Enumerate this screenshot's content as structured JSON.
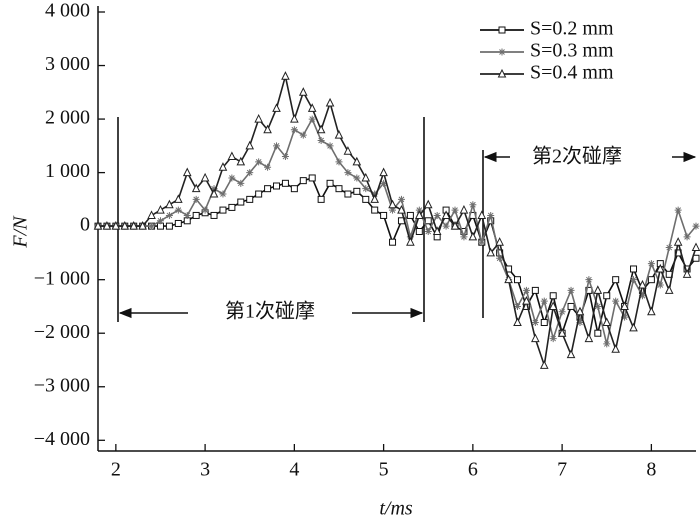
{
  "chart_data": {
    "type": "line",
    "x_label": "t/ms",
    "y_label": "F/N",
    "annotations": [
      "第1次碰摩",
      "第2次碰摩"
    ],
    "x": [
      1.8,
      1.9,
      2,
      2.1,
      2.2,
      2.3,
      2.4,
      2.5,
      2.6,
      2.7,
      2.8,
      2.9,
      3,
      3.1,
      3.2,
      3.3,
      3.4,
      3.5,
      3.6,
      3.7,
      3.8,
      3.9,
      4,
      4.1,
      4.2,
      4.3,
      4.4,
      4.5,
      4.6,
      4.7,
      4.8,
      4.9,
      5,
      5.1,
      5.2,
      5.3,
      5.4,
      5.5,
      5.6,
      5.7,
      5.8,
      5.9,
      6,
      6.1,
      6.2,
      6.3,
      6.4,
      6.5,
      6.6,
      6.7,
      6.8,
      6.9,
      7,
      7.1,
      7.2,
      7.3,
      7.4,
      7.5,
      7.6,
      7.7,
      7.8,
      7.9,
      8,
      8.1,
      8.2,
      8.3,
      8.4,
      8.5
    ],
    "series": [
      {
        "name": "S=0.2 mm",
        "color": "#111111",
        "marker": "square",
        "values": [
          0,
          0,
          0,
          0,
          0,
          0,
          0,
          0,
          0,
          50,
          100,
          200,
          250,
          200,
          300,
          350,
          450,
          500,
          600,
          700,
          750,
          800,
          700,
          850,
          900,
          500,
          800,
          700,
          600,
          650,
          500,
          300,
          200,
          -300,
          100,
          200,
          -100,
          100,
          -200,
          300,
          0,
          -100,
          200,
          -300,
          100,
          -500,
          -800,
          -1000,
          -1500,
          -1200,
          -1800,
          -1300,
          -2000,
          -1500,
          -1700,
          -1200,
          -2000,
          -1300,
          -1000,
          -1500,
          -800,
          -1200,
          -1000,
          -700,
          -900,
          -500,
          -800,
          -600
        ]
      },
      {
        "name": "S=0.3 mm",
        "color": "#6e6e6e",
        "marker": "asterisk",
        "values": [
          0,
          0,
          0,
          0,
          0,
          0,
          0,
          100,
          200,
          300,
          200,
          500,
          300,
          700,
          600,
          900,
          800,
          1000,
          1200,
          1100,
          1500,
          1300,
          1800,
          1700,
          2000,
          1600,
          1500,
          1200,
          1000,
          900,
          700,
          600,
          800,
          300,
          500,
          -200,
          300,
          -100,
          200,
          0,
          300,
          -200,
          400,
          -300,
          200,
          -600,
          -1000,
          -1500,
          -1200,
          -1800,
          -1400,
          -2100,
          -1600,
          -1200,
          -1800,
          -1000,
          -1500,
          -2200,
          -1400,
          -1700,
          -1000,
          -1300,
          -700,
          -1100,
          -400,
          300,
          -200,
          0
        ]
      },
      {
        "name": "S=0.4 mm",
        "color": "#222222",
        "marker": "triangle",
        "values": [
          0,
          0,
          0,
          0,
          0,
          0,
          200,
          300,
          400,
          500,
          1000,
          700,
          900,
          600,
          1100,
          1300,
          1200,
          1500,
          2000,
          1800,
          2200,
          2800,
          2000,
          2500,
          2200,
          1800,
          2300,
          1700,
          1400,
          1200,
          900,
          500,
          1000,
          400,
          300,
          -300,
          200,
          400,
          -100,
          200,
          0,
          300,
          -200,
          200,
          -500,
          -300,
          -1000,
          -1800,
          -1400,
          -2100,
          -2600,
          -1500,
          -2000,
          -2400,
          -1600,
          -2100,
          -1200,
          -1800,
          -2300,
          -1500,
          -1900,
          -1100,
          -1600,
          -800,
          -1200,
          -300,
          -900,
          -400
        ]
      }
    ],
    "xlim": [
      1.8,
      8.5
    ],
    "ylim": [
      -4200,
      4000
    ],
    "xticks": [
      2,
      3,
      4,
      5,
      6,
      7,
      8
    ],
    "yticks": [
      {
        "value": 4000,
        "label": "4 000"
      },
      {
        "value": 3000,
        "label": "3 000"
      },
      {
        "value": 2000,
        "label": "2 000"
      },
      {
        "value": 1000,
        "label": "1 000"
      },
      0,
      {
        "value": -1000,
        "label": "−1 000"
      },
      {
        "value": -2000,
        "label": "−2 000"
      },
      {
        "value": -3000,
        "label": "−3 000"
      },
      {
        "value": -4000,
        "label": "−4 000"
      }
    ],
    "legend": "upper right",
    "grid": false
  }
}
